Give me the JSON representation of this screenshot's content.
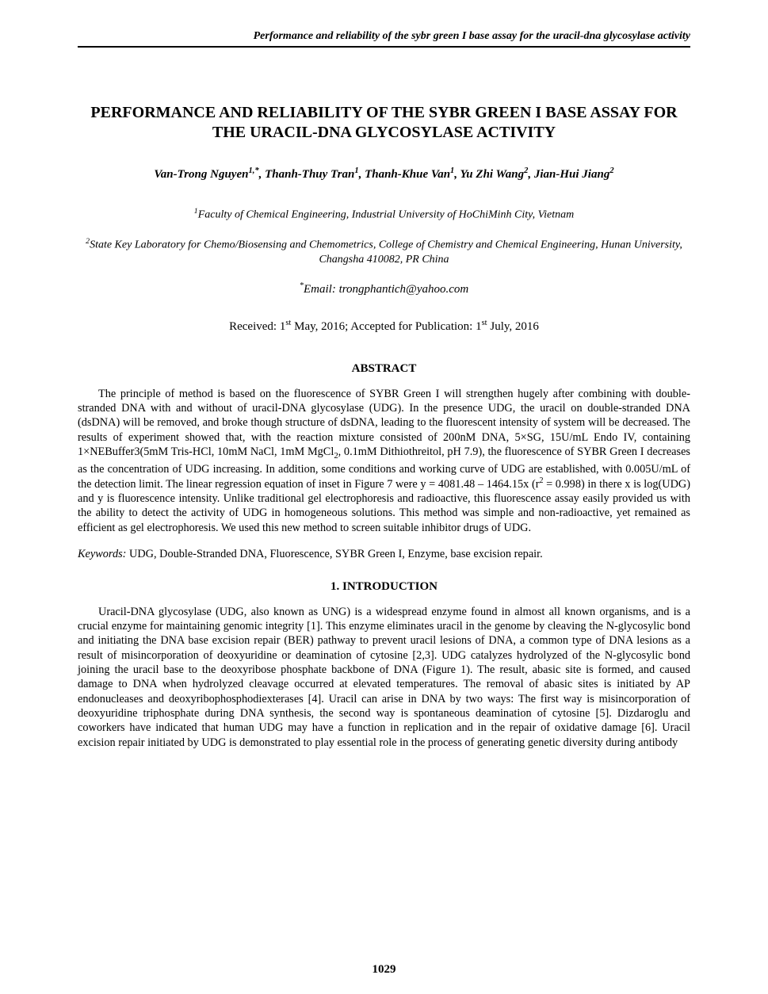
{
  "running_head": "Performance and reliability of the sybr green I base assay for the uracil-dna glycosylase activity",
  "title": "PERFORMANCE AND RELIABILITY OF THE SYBR GREEN I BASE ASSAY FOR THE URACIL-DNA GLYCOSYLASE ACTIVITY",
  "authors_html": "Van-Trong Nguyen<span class=\"sup\">1,*</span>, Thanh-Thuy Tran<span class=\"sup\">1</span>, Thanh-Khue Van<span class=\"sup\">1</span>, Yu Zhi Wang<span class=\"sup\">2</span>, Jian-Hui Jiang<span class=\"sup\">2</span>",
  "affiliation1_html": "<span class=\"sup\">1</span>Faculty of Chemical Engineering, Industrial University of HoChiMinh City, Vietnam",
  "affiliation2_html": "<span class=\"sup\">2</span>State Key Laboratory for Chemo/Biosensing and Chemometrics, College of Chemistry and Chemical Engineering, Hunan University, Changsha 410082, PR China",
  "email_html": "<span class=\"sup\">*</span>Email: trongphantich@yahoo.com",
  "dates_html": "Received: 1<span class=\"sup\">st</span> May, 2016; Accepted for Publication: 1<span class=\"sup\">st</span> July, 2016",
  "abstract_heading": "ABSTRACT",
  "abstract_html": "The principle of method is based on the fluorescence of SYBR Green I will strengthen hugely after combining with double-stranded DNA with and without of uracil-DNA glycosylase (UDG). In the presence UDG, the uracil on double-stranded DNA (dsDNA) will be removed, and broke though structure of dsDNA, leading to the fluorescent intensity of system will be decreased. The results of experiment showed that, with the reaction mixture consisted of 200nM DNA, 5×SG, 15U/mL Endo IV, containing 1×NEBuffer3(5mM Tris-HCl, 10mM NaCl, 1mM MgCl<span class=\"sub\">2</span>, 0.1mM Dithiothreitol, pH 7.9), the fluorescence of SYBR Green I decreases as the concentration of UDG increasing. In addition, some conditions and working curve of UDG are established, with 0.005U/mL of the detection limit. The linear regression equation of inset in Figure 7 were y = 4081.48 – 1464.15x (r<span class=\"sup\">2</span> = 0.998) in there x is log(UDG) and y is fluorescence intensity. Unlike traditional gel electrophoresis and radioactive, this fluorescence assay easily provided us with the ability to detect the activity of UDG in homogeneous solutions. This method was simple and non-radioactive, yet remained as efficient as gel electrophoresis. We used this new method to screen suitable inhibitor drugs of UDG.",
  "keywords_label": "Keywords:",
  "keywords_text": " UDG, Double-Stranded DNA, Fluorescence, SYBR Green I, Enzyme, base excision repair.",
  "intro_heading": "1. INTRODUCTION",
  "intro_html": "Uracil-DNA glycosylase (UDG, also known as UNG) is a widespread enzyme found in almost all known organisms, and is a crucial enzyme for maintaining genomic integrity [1]. This enzyme eliminates uracil in the genome by cleaving the N-glycosylic bond and initiating the DNA base excision repair (BER) pathway to prevent uracil lesions of DNA, a common type of DNA lesions as a result of misincorporation of deoxyuridine or deamination of cytosine [2,3]. UDG catalyzes hydrolyzed of the N-glycosylic bond joining the uracil base to the deoxyribose phosphate backbone of DNA (Figure 1). The result, abasic site is formed, and caused damage to DNA when hydrolyzed cleavage occurred at elevated temperatures. The removal of abasic sites is initiated by AP endonucleases and deoxyribophosphodiexterases [4]. Uracil can arise in DNA by two ways: The first way is misincorporation of deoxyuridine triphosphate during DNA synthesis, the second way is spontaneous deamination of cytosine [5]. Dizdaroglu and coworkers have indicated that human UDG may have a function in replication and in the repair of oxidative damage [6]. Uracil excision repair initiated by UDG is demonstrated to play essential role in the process of generating genetic diversity during antibody",
  "page_number": "1029"
}
